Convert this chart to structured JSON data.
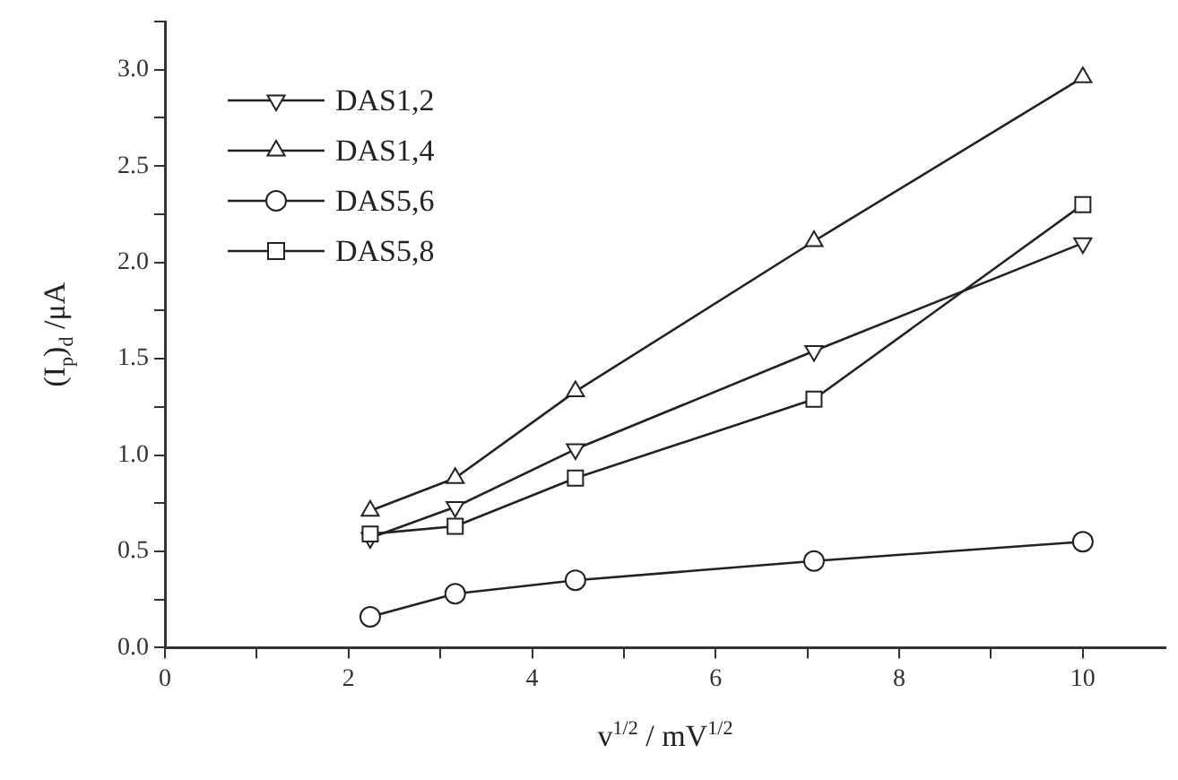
{
  "chart_data": {
    "type": "line",
    "xlabel": "v$^{1/2}$ / mV$^{1/2}$",
    "ylabel": "(I$_{p}$)$_{d}$ /μA",
    "xlim": [
      0,
      10.9
    ],
    "xticks": [
      0,
      {
        "value": 1,
        "label": null
      },
      2,
      {
        "value": 3,
        "label": null
      },
      4,
      {
        "value": 5,
        "label": null
      },
      6,
      {
        "value": 7,
        "label": null
      },
      8,
      {
        "value": 9,
        "label": null
      },
      10
    ],
    "ylim": [
      0,
      3.25
    ],
    "yticks": [
      "0.0",
      {
        "value": 0.25,
        "label": null
      },
      {
        "value": 0.5,
        "label": "0.5"
      },
      {
        "value": 0.75,
        "label": null
      },
      {
        "value": 1,
        "label": "1.0"
      },
      {
        "value": 1.25,
        "label": null
      },
      {
        "value": 1.5,
        "label": "1.5"
      },
      {
        "value": 1.75,
        "label": null
      },
      {
        "value": 2,
        "label": "2.0"
      },
      {
        "value": 2.25,
        "label": null
      },
      {
        "value": 2.5,
        "label": "2.5"
      },
      {
        "value": 2.75,
        "label": null
      },
      {
        "value": 3,
        "label": "3.0"
      },
      {
        "value": 3.25,
        "label": null
      }
    ],
    "x": [
      2.236,
      3.162,
      4.472,
      7.071,
      10
    ],
    "grid": false,
    "legend": "top left",
    "line_style": "solid",
    "series": [
      {
        "name": "DAS1,2",
        "color": "#222222",
        "marker": "triangle-down",
        "values": [
          0.57,
          0.73,
          1.03,
          1.54,
          2.1
        ]
      },
      {
        "name": "DAS1,4",
        "color": "#222222",
        "marker": "triangle",
        "values": [
          0.71,
          0.88,
          1.33,
          2.11,
          2.96
        ]
      },
      {
        "name": "DAS5,6",
        "color": "#222222",
        "marker": "circle",
        "values": [
          0.16,
          0.28,
          0.35,
          0.45,
          0.55
        ]
      },
      {
        "name": "DAS5,8",
        "color": "#222222",
        "marker": "square",
        "values": [
          0.59,
          0.63,
          0.88,
          1.29,
          2.3
        ]
      }
    ]
  }
}
